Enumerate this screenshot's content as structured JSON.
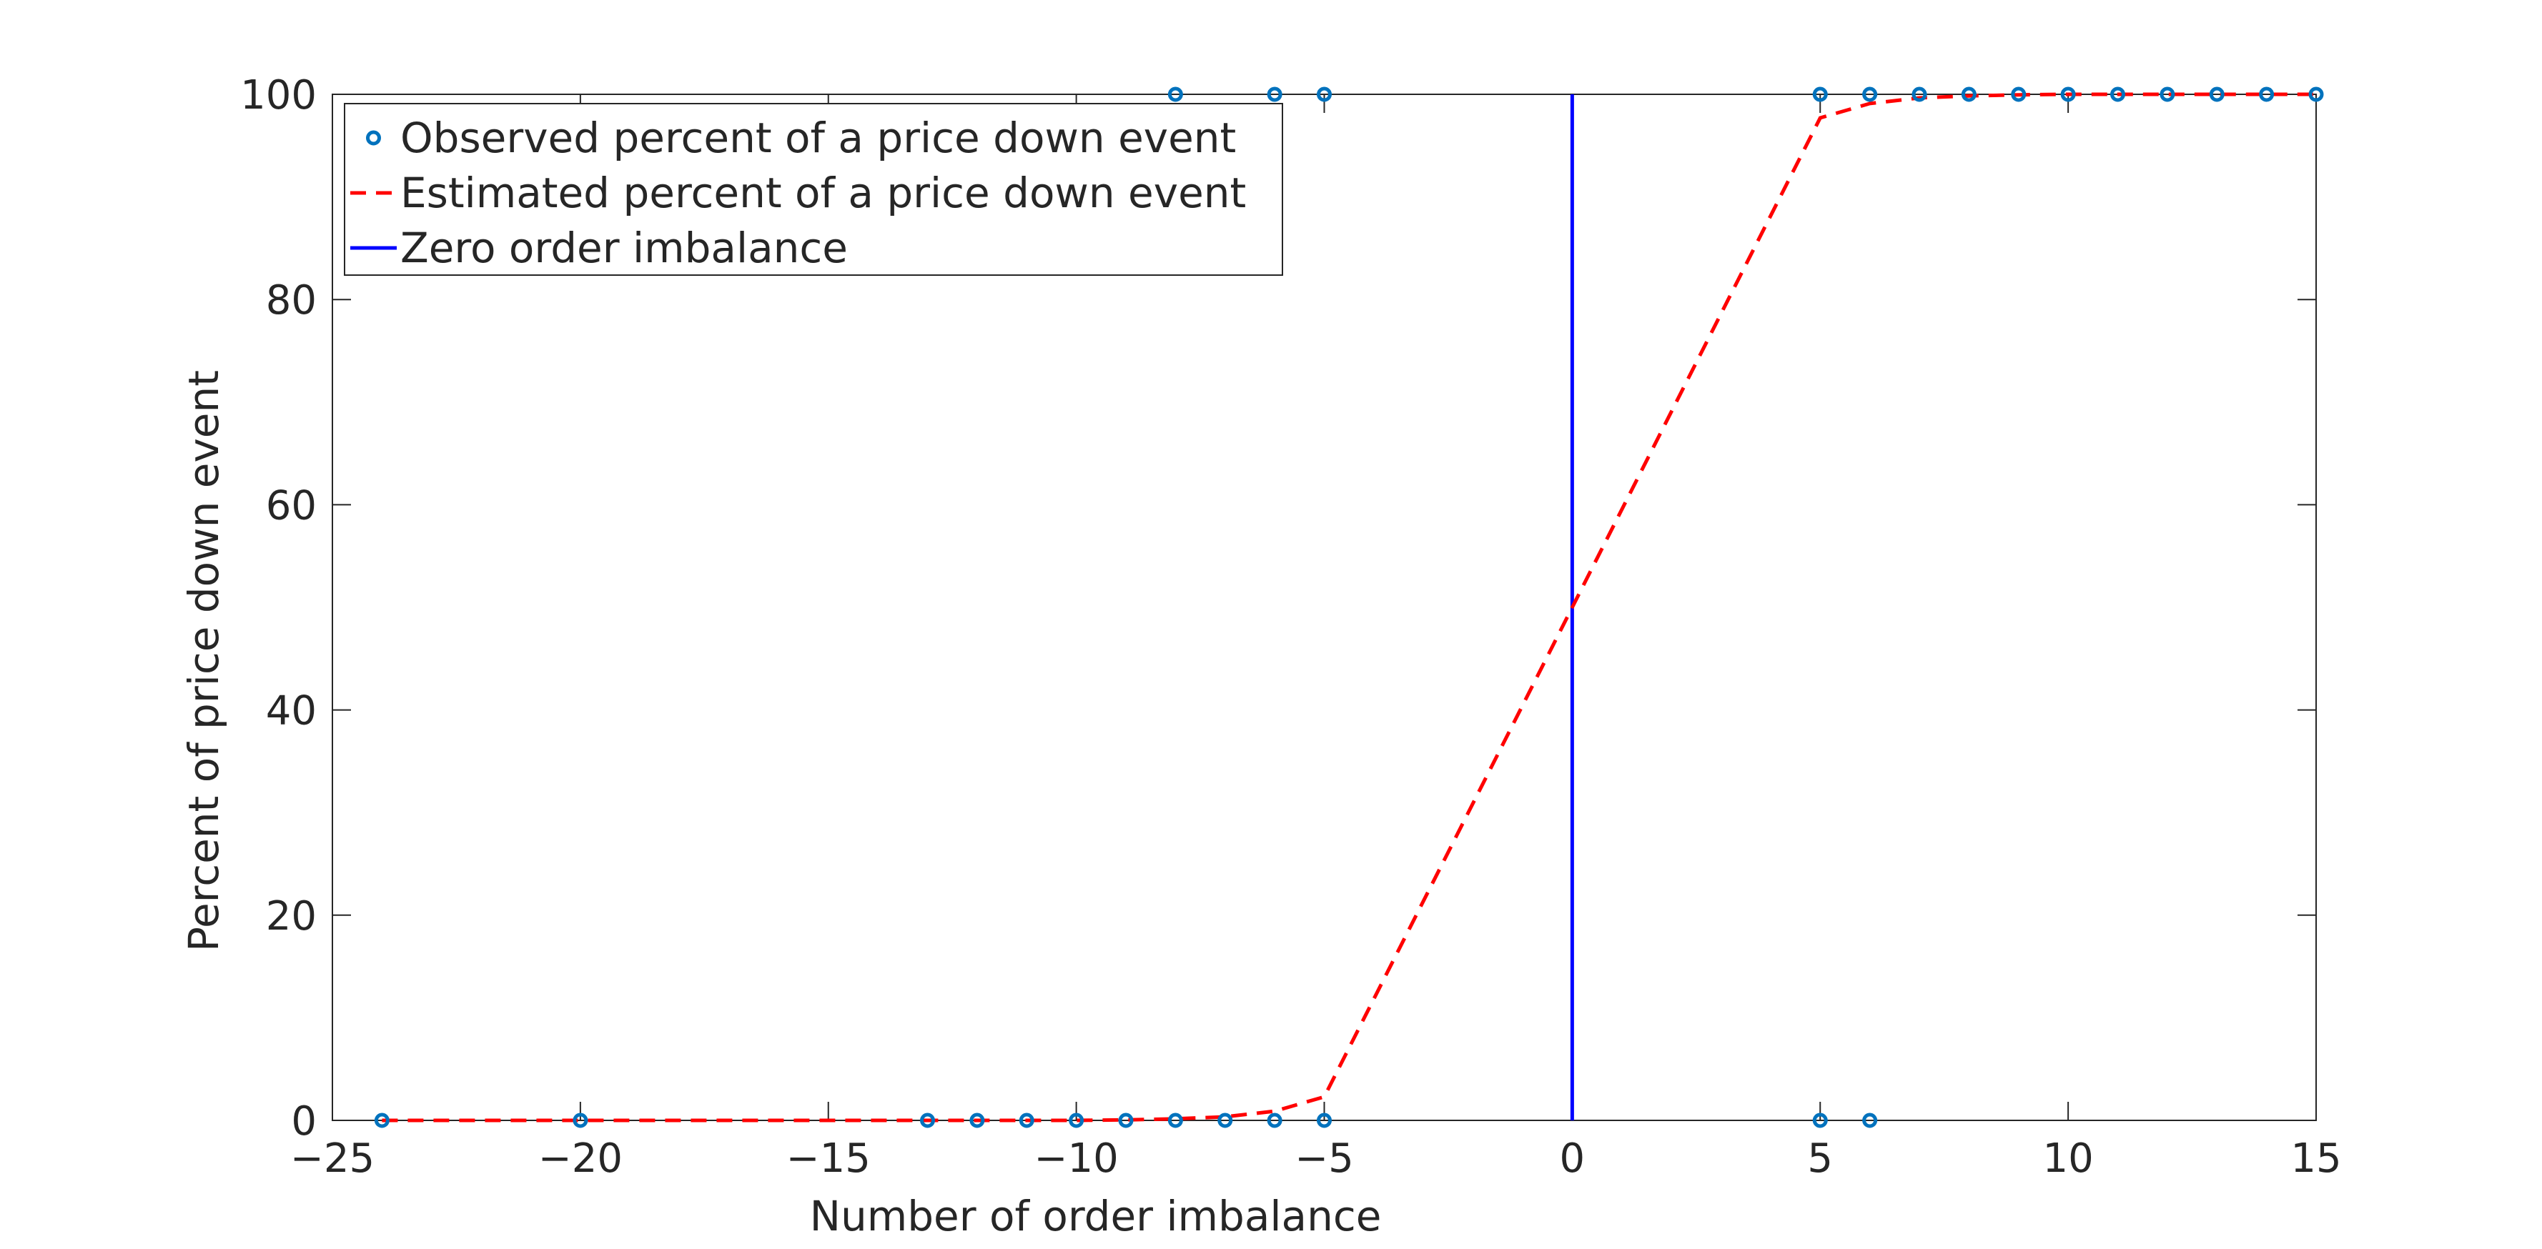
{
  "chart_data": {
    "type": "scatter",
    "title": "",
    "xlabel": "Number of order imbalance",
    "ylabel": "Percent of price down event",
    "xlim": [
      -25,
      15
    ],
    "ylim": [
      0,
      100
    ],
    "xticks": [
      -25,
      -20,
      -15,
      -10,
      -5,
      0,
      5,
      10,
      15
    ],
    "xtick_labels": [
      "−25",
      "−20",
      "−15",
      "−10",
      "−5",
      "0",
      "5",
      "10",
      "15"
    ],
    "yticks": [
      0,
      20,
      40,
      60,
      80,
      100
    ],
    "ytick_labels": [
      "0",
      "20",
      "40",
      "60",
      "80",
      "100"
    ],
    "grid": false,
    "legend_position": "top-left",
    "series": [
      {
        "name": "Observed percent of a price down event",
        "type": "scatter",
        "color": "#0072BD",
        "marker": "circle",
        "points": [
          [
            -24,
            0
          ],
          [
            -20,
            0
          ],
          [
            -13,
            0
          ],
          [
            -12,
            0
          ],
          [
            -11,
            0
          ],
          [
            -10,
            0
          ],
          [
            -9,
            0
          ],
          [
            -8,
            0
          ],
          [
            -7,
            0
          ],
          [
            -6,
            0
          ],
          [
            -5,
            0
          ],
          [
            -8,
            100
          ],
          [
            -6,
            100
          ],
          [
            -5,
            100
          ],
          [
            5,
            0
          ],
          [
            6,
            0
          ],
          [
            5,
            100
          ],
          [
            6,
            100
          ],
          [
            7,
            100
          ],
          [
            8,
            100
          ],
          [
            9,
            100
          ],
          [
            10,
            100
          ],
          [
            11,
            100
          ],
          [
            12,
            100
          ],
          [
            13,
            100
          ],
          [
            14,
            100
          ],
          [
            15,
            100
          ]
        ]
      },
      {
        "name": "Estimated percent of a price down event",
        "type": "line",
        "style": "dashed",
        "color": "#FF0000",
        "x": [
          -24,
          -20,
          -13,
          -12,
          -11,
          -10,
          -9,
          -8,
          -7,
          -6,
          -5,
          0,
          5,
          6,
          7,
          8,
          9,
          10,
          11,
          12,
          13,
          14,
          15
        ],
        "y": [
          0,
          0,
          0,
          0,
          0,
          0,
          0.05,
          0.15,
          0.35,
          0.9,
          2.3,
          50,
          97.7,
          99.1,
          99.65,
          99.85,
          99.95,
          100,
          100,
          100,
          100,
          100,
          100
        ]
      },
      {
        "name": "Zero order imbalance",
        "type": "vline",
        "color": "#0000FF",
        "x": 0
      }
    ]
  }
}
